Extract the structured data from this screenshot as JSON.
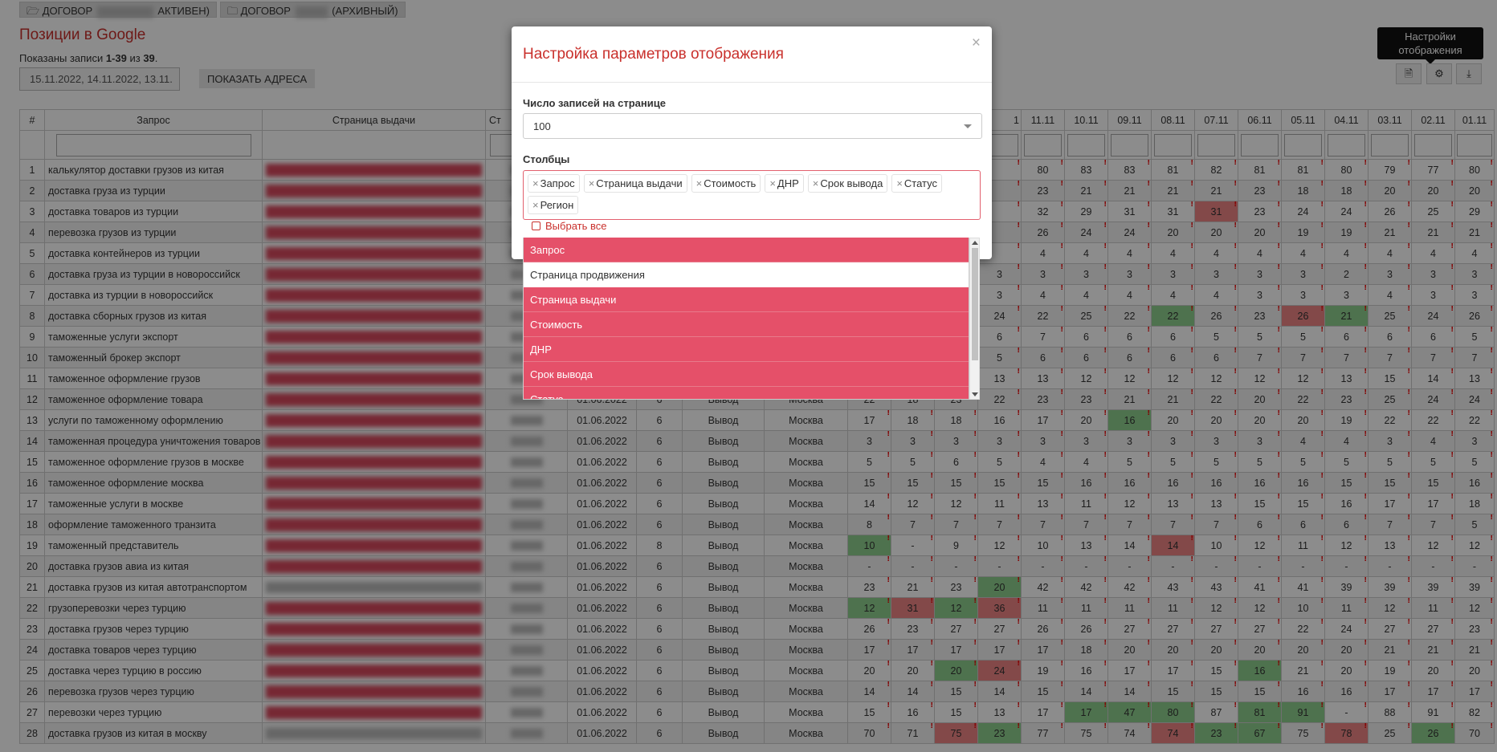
{
  "top_buttons": [
    {
      "prefix": "ДОГОВОР",
      "suffix": "АКТИВЕН)"
    },
    {
      "prefix": "ДОГОВОР",
      "suffix": "(АРХИВНЫЙ)"
    }
  ],
  "page_title": "Позиции в Google",
  "shown": {
    "prefix": "Показаны записи ",
    "range": "1-39",
    "mid": " из ",
    "total": "39",
    "end": "."
  },
  "date_filter": "15.11.2022, 14.11.2022, 13.11.",
  "show_addresses_label": "ПОКАЗАТЬ АДРЕСА",
  "tooltip": "Настройки отображения",
  "header": {
    "num": "#",
    "query": "Запрос",
    "page": "Страница выдачи",
    "cost": "Ст",
    "dates": [
      "11.11",
      "10.11",
      "09.11",
      "08.11",
      "07.11",
      "06.11",
      "05.11",
      "04.11",
      "03.11",
      "02.11",
      "01.11"
    ],
    "partial": "1"
  },
  "rows": [
    {
      "n": "1",
      "q": "калькулятор доставки грузов из китая",
      "page": "red",
      "d": "",
      "c": "",
      "r": "",
      "reg": "",
      "v": [
        "80",
        "83",
        "83",
        "81",
        "82",
        "81",
        "81",
        "80",
        "79",
        "77",
        "80"
      ]
    },
    {
      "n": "2",
      "q": "доставка груза из турции",
      "page": "red",
      "d": "",
      "c": "",
      "r": "",
      "reg": "",
      "v": [
        "23",
        "21",
        "21",
        "21",
        "21",
        "23",
        "18",
        "18",
        "20",
        "20",
        "20"
      ]
    },
    {
      "n": "3",
      "q": "доставка товаров из турции",
      "page": "red",
      "d": "",
      "c": "",
      "r": "",
      "reg": "",
      "v": [
        "32",
        "29",
        "31",
        "31",
        "31",
        "23",
        "24",
        "24",
        "26",
        "25",
        "29"
      ]
    },
    {
      "n": "4",
      "q": "перевозка грузов из турции",
      "page": "red",
      "d": "",
      "c": "",
      "r": "",
      "reg": "",
      "v": [
        "26",
        "24",
        "24",
        "20",
        "20",
        "20",
        "19",
        "19",
        "21",
        "21",
        "21"
      ]
    },
    {
      "n": "5",
      "q": "доставка контейнеров из турции",
      "page": "red",
      "d": "",
      "c": "",
      "r": "",
      "reg": "",
      "v": [
        "4",
        "4",
        "4",
        "4",
        "4",
        "4",
        "4",
        "4",
        "4",
        "4",
        "4"
      ]
    },
    {
      "n": "6",
      "q": "доставка груза из турции в новороссийск",
      "page": "red",
      "d": "",
      "c": "",
      "r": "",
      "reg": "",
      "v": [
        "3",
        "3",
        "3",
        "3",
        "3",
        "3",
        "3",
        "2",
        "3",
        "3",
        "3"
      ]
    },
    {
      "n": "7",
      "q": "доставка из турции в новороссийск",
      "page": "red",
      "d": "",
      "c": "",
      "r": "",
      "reg": "",
      "v": [
        "4",
        "4",
        "4",
        "4",
        "4",
        "3",
        "3",
        "3",
        "4",
        "3",
        "3"
      ]
    },
    {
      "n": "8",
      "q": "доставка сборных грузов из китая",
      "page": "red",
      "d": "",
      "c": "",
      "r": "",
      "reg": "",
      "v": [
        "22",
        "25",
        "22",
        "22",
        "26",
        "23",
        "26",
        "21",
        "25",
        "24",
        "26"
      ]
    },
    {
      "n": "9",
      "q": "таможенные услуги экспорт",
      "page": "red",
      "d": "",
      "c": "",
      "r": "",
      "reg": "",
      "v": [
        "7",
        "6",
        "6",
        "6",
        "5",
        "5",
        "5",
        "6",
        "6",
        "6",
        "5"
      ]
    },
    {
      "n": "10",
      "q": "таможенный брокер экспорт",
      "page": "red",
      "d": "",
      "c": "",
      "r": "",
      "reg": "",
      "v": [
        "6",
        "6",
        "6",
        "6",
        "6",
        "7",
        "7",
        "7",
        "7",
        "7",
        "7"
      ]
    },
    {
      "n": "11",
      "q": "таможенное оформление грузов",
      "page": "red",
      "d": "",
      "c": "",
      "r": "",
      "reg": "",
      "v": [
        "13",
        "12",
        "12",
        "12",
        "12",
        "12",
        "12",
        "13",
        "15",
        "14",
        "13"
      ]
    },
    {
      "n": "12",
      "q": "таможенное оформление товара",
      "page": "red",
      "d": "01.06.2022",
      "c": "6",
      "r": "Вывод",
      "reg": "Москва",
      "v": [
        "23",
        "23",
        "21",
        "21",
        "22",
        "20",
        "22",
        "23",
        "25",
        "24",
        "24"
      ]
    },
    {
      "n": "13",
      "q": "услуги по таможенному оформлению",
      "page": "red",
      "d": "01.06.2022",
      "c": "6",
      "r": "Вывод",
      "reg": "Москва",
      "v": [
        "17",
        "20",
        "16",
        "20",
        "20",
        "20",
        "20",
        "19",
        "22",
        "22",
        "22"
      ]
    },
    {
      "n": "14",
      "q": "таможенная процедура уничтожения товаров",
      "page": "red",
      "d": "01.06.2022",
      "c": "6",
      "r": "Вывод",
      "reg": "Москва",
      "v": [
        "3",
        "3",
        "3",
        "3",
        "3",
        "3",
        "4",
        "4",
        "3",
        "4",
        "3"
      ]
    },
    {
      "n": "15",
      "q": "таможенное оформление грузов в москве",
      "page": "red",
      "d": "01.06.2022",
      "c": "6",
      "r": "Вывод",
      "reg": "Москва",
      "v": [
        "4",
        "4",
        "5",
        "5",
        "5",
        "5",
        "5",
        "5",
        "5",
        "5",
        "5"
      ]
    },
    {
      "n": "16",
      "q": "таможенное оформление москва",
      "page": "red",
      "d": "01.06.2022",
      "c": "6",
      "r": "Вывод",
      "reg": "Москва",
      "v": [
        "15",
        "16",
        "16",
        "16",
        "16",
        "16",
        "16",
        "15",
        "15",
        "15",
        "16"
      ]
    },
    {
      "n": "17",
      "q": "таможенные услуги в москве",
      "page": "red",
      "d": "01.06.2022",
      "c": "6",
      "r": "Вывод",
      "reg": "Москва",
      "v": [
        "13",
        "11",
        "12",
        "13",
        "13",
        "15",
        "15",
        "16",
        "17",
        "17",
        "18"
      ]
    },
    {
      "n": "18",
      "q": "оформление таможенного транзита",
      "page": "red",
      "d": "01.06.2022",
      "c": "6",
      "r": "Вывод",
      "reg": "Москва",
      "v": [
        "7",
        "7",
        "7",
        "7",
        "7",
        "6",
        "6",
        "6",
        "7",
        "7",
        "5"
      ]
    },
    {
      "n": "19",
      "q": "таможенный представитель",
      "page": "red",
      "d": "01.06.2022",
      "c": "8",
      "r": "Вывод",
      "reg": "Москва",
      "v": [
        "10",
        "13",
        "14",
        "14",
        "10",
        "12",
        "11",
        "12",
        "13",
        "12",
        "12"
      ]
    },
    {
      "n": "20",
      "q": "доставка грузов авиа из китая",
      "page": "red",
      "d": "01.06.2022",
      "c": "6",
      "r": "Вывод",
      "reg": "Москва",
      "v": [
        "-",
        "-",
        "-",
        "-",
        "-",
        "-",
        "-",
        "-",
        "-",
        "-",
        "-"
      ]
    },
    {
      "n": "21",
      "q": "доставка грузов из китая автотранспортом",
      "page": "grey",
      "d": "01.06.2022",
      "c": "6",
      "r": "Вывод",
      "reg": "Москва",
      "v": [
        "42",
        "42",
        "42",
        "43",
        "43",
        "41",
        "41",
        "39",
        "39",
        "39",
        "39"
      ]
    },
    {
      "n": "22",
      "q": "грузоперевозки через турцию",
      "page": "red",
      "d": "01.06.2022",
      "c": "6",
      "r": "Вывод",
      "reg": "Москва",
      "v": [
        "11",
        "11",
        "11",
        "11",
        "12",
        "12",
        "10",
        "11",
        "12",
        "11",
        "12"
      ]
    },
    {
      "n": "23",
      "q": "доставка грузов через турцию",
      "page": "red",
      "d": "01.06.2022",
      "c": "6",
      "r": "Вывод",
      "reg": "Москва",
      "v": [
        "26",
        "26",
        "27",
        "27",
        "27",
        "27",
        "22",
        "24",
        "27",
        "27",
        "23"
      ]
    },
    {
      "n": "24",
      "q": "доставка товаров через турцию",
      "page": "red",
      "d": "01.06.2022",
      "c": "6",
      "r": "Вывод",
      "reg": "Москва",
      "v": [
        "17",
        "18",
        "20",
        "20",
        "20",
        "20",
        "20",
        "20",
        "21",
        "21",
        "21"
      ]
    },
    {
      "n": "25",
      "q": "доставка через турцию в россию",
      "page": "red",
      "d": "01.06.2022",
      "c": "6",
      "r": "Вывод",
      "reg": "Москва",
      "v": [
        "19",
        "16",
        "17",
        "17",
        "15",
        "16",
        "21",
        "20",
        "19",
        "20",
        "20"
      ]
    },
    {
      "n": "26",
      "q": "перевозка грузов через турцию",
      "page": "red",
      "d": "01.06.2022",
      "c": "6",
      "r": "Вывод",
      "reg": "Москва",
      "v": [
        "15",
        "14",
        "14",
        "15",
        "15",
        "15",
        "16",
        "16",
        "17",
        "17",
        "17"
      ]
    },
    {
      "n": "27",
      "q": "перевозки через турцию",
      "page": "red",
      "d": "01.06.2022",
      "c": "6",
      "r": "Вывод",
      "reg": "Москва",
      "v": [
        "17",
        "17",
        "47",
        "80",
        "87",
        "81",
        "91",
        "-",
        "88",
        "91",
        "82"
      ]
    },
    {
      "n": "28",
      "q": "доставка грузов из китая в москву",
      "page": "grey",
      "d": "01.06.2022",
      "c": "6",
      "r": "Вывод",
      "reg": "Москва",
      "v": [
        "77",
        "75",
        "74",
        "74",
        "23",
        "67",
        "75",
        "78",
        "25",
        "26",
        "70"
      ]
    }
  ],
  "left_extra": {
    "12": [
      "22",
      "18",
      "23",
      "22"
    ],
    "13": [
      "17",
      "18",
      "18",
      "16"
    ],
    "14": [
      "3",
      "3",
      "3",
      "3"
    ],
    "15": [
      "5",
      "5",
      "6",
      "5"
    ],
    "16": [
      "15",
      "15",
      "15",
      "15"
    ],
    "17": [
      "14",
      "12",
      "12",
      "11"
    ],
    "18": [
      "8",
      "7",
      "7",
      "7"
    ],
    "19": [
      "10",
      "-",
      "9",
      "12"
    ],
    "20": [
      "-",
      "-",
      "-",
      "-"
    ],
    "21": [
      "23",
      "21",
      "23",
      "20"
    ],
    "22": [
      "12",
      "31",
      "12",
      "36"
    ],
    "23": [
      "26",
      "23",
      "27",
      "27"
    ],
    "24": [
      "17",
      "17",
      "17",
      "17"
    ],
    "25": [
      "20",
      "20",
      "20",
      "24"
    ],
    "26": [
      "14",
      "14",
      "15",
      "14"
    ],
    "27": [
      "15",
      "16",
      "15",
      "13"
    ],
    "28": [
      "70",
      "71",
      "75",
      "23"
    ]
  },
  "row_edge": {
    "6": "3",
    "7": "3",
    "8": "24",
    "9": "6",
    "10": "5",
    "11": "13"
  },
  "modal": {
    "title": "Настройка параметров отображения",
    "close": "×",
    "per_page_label": "Число записей на странице",
    "per_page_value": "100",
    "columns_label": "Столбцы",
    "tags": [
      "Запрос",
      "Страница выдачи",
      "Стоимость",
      "ДНР",
      "Срок вывода",
      "Статус",
      "Регион"
    ],
    "tag_remove": "×",
    "select_all": "Выбрать все",
    "options": [
      {
        "label": "Запрос",
        "selected": true
      },
      {
        "label": "Страница продвижения",
        "selected": false
      },
      {
        "label": "Страница выдачи",
        "selected": true
      },
      {
        "label": "Стоимость",
        "selected": true
      },
      {
        "label": "ДНР",
        "selected": true
      },
      {
        "label": "Срок вывода",
        "selected": true
      },
      {
        "label": "Статус",
        "selected": true
      }
    ]
  },
  "colors": {
    "accent": "#c9302c",
    "selected_option": "#e55069",
    "cell_good": "#8ed08e",
    "cell_bad": "#ef8585"
  }
}
